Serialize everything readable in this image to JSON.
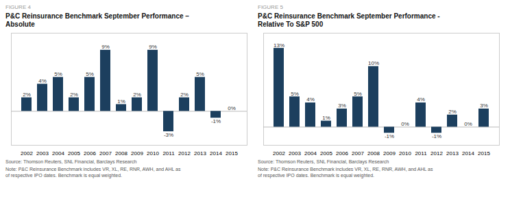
{
  "chart_data": [
    {
      "type": "bar",
      "title": "P&C Reinsurance Benchmark September Performance –\nAbsolute",
      "annotations": [
        "FIGURE 4",
        "Source: Thomson Reuters, SNL Financial, Barclays Research",
        "Note: P&C Reinsurance Benchmark includes VR, XL, RE, RNR, AWH, and AHL as\nof respective IPO dates. Benchmark is equal weighted."
      ],
      "categories": [
        "2002",
        "2003",
        "2004",
        "2005",
        "2006",
        "2007",
        "2008",
        "2009",
        "2010",
        "2011",
        "2012",
        "2013",
        "2014",
        "2015"
      ],
      "values": [
        2,
        4,
        5,
        2,
        5,
        9,
        1,
        2,
        9,
        -3,
        2,
        5,
        -1,
        0
      ],
      "value_labels": [
        "2%",
        "4%",
        "5%",
        "2%",
        "5%",
        "9%",
        "1%",
        "2%",
        "9%",
        "-3%",
        "2%",
        "5%",
        "-1%",
        "0%"
      ],
      "color": "#1c3f5e",
      "ylim": [
        -5,
        11.5
      ],
      "grid": false,
      "data_labels": true,
      "tick_labels": "x"
    },
    {
      "type": "bar",
      "title": "P&C Reinsurance Benchmark September Performance -\nRelative To S&P 500",
      "annotations": [
        "FIGURE 5",
        "Source: Thomson Reuters, SNL Financial, Barclays Research",
        "Note: P&C Reinsurance Benchmark includes VR, XL, RE, RNR, AWH, and AHL as\nof respective IPO dates. Benchmark is equal weighted."
      ],
      "categories": [
        "2002",
        "2003",
        "2004",
        "2005",
        "2006",
        "2007",
        "2008",
        "2009",
        "2010",
        "2011",
        "2012",
        "2013",
        "2014",
        "2015"
      ],
      "values": [
        13,
        5,
        4,
        1,
        3,
        5,
        10,
        -1,
        0,
        4,
        -1,
        2,
        0,
        3
      ],
      "value_labels": [
        "13%",
        "5%",
        "4%",
        "1%",
        "3%",
        "5%",
        "10%",
        "-1%",
        "0%",
        "4%",
        "-1%",
        "2%",
        "0%",
        "3%"
      ],
      "color": "#1c3f5e",
      "ylim": [
        -3,
        15.5
      ],
      "grid": false,
      "data_labels": true,
      "tick_labels": "x"
    }
  ]
}
